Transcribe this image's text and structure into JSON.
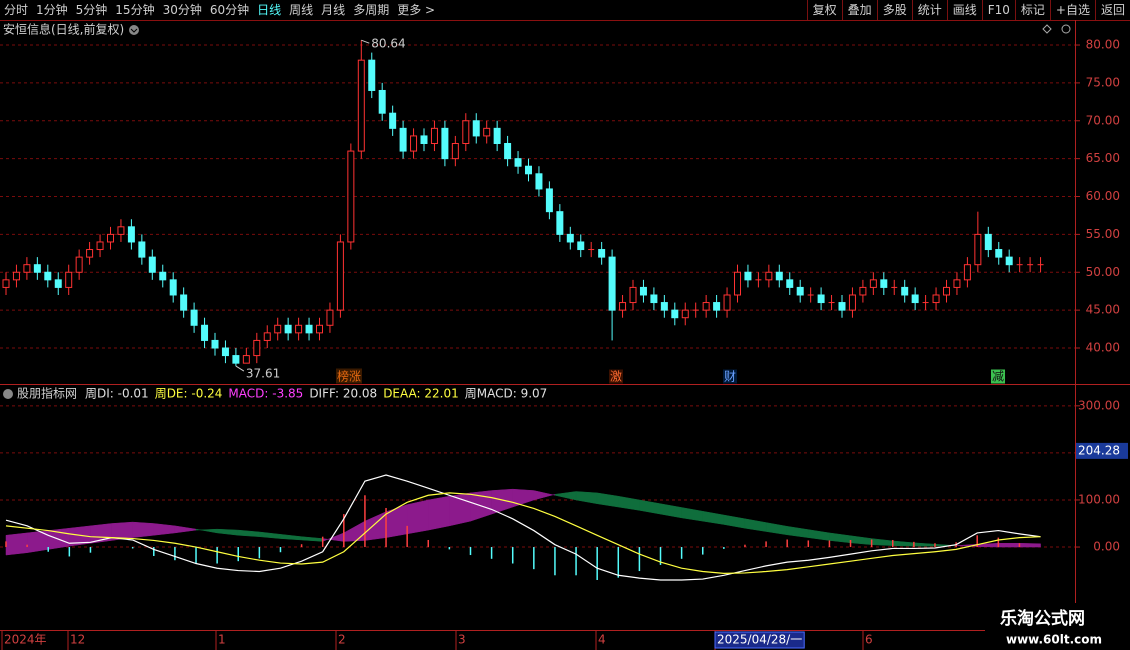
{
  "toolbar": {
    "left": [
      "分时",
      "1分钟",
      "5分钟",
      "15分钟",
      "30分钟",
      "60分钟",
      "日线",
      "周线",
      "月线",
      "多周期",
      "更多 >"
    ],
    "active_index": 6,
    "right": [
      "复权",
      "叠加",
      "多股",
      "统计",
      "画线",
      "F10",
      "标记",
      "+自选",
      "返回"
    ]
  },
  "chart_data": [
    {
      "type": "candlestick",
      "title": "安恒信息(日线,前复权)",
      "ylim": [
        35.38,
        83.04
      ],
      "yticks": [
        {
          "value": 80,
          "label": "80.00"
        },
        {
          "value": 75,
          "label": "75.00"
        },
        {
          "value": 70,
          "label": "70.00"
        },
        {
          "value": 65,
          "label": "65.00"
        },
        {
          "value": 60,
          "label": "60.00"
        },
        {
          "value": 55,
          "label": "55.00"
        },
        {
          "value": 50,
          "label": "50.00"
        },
        {
          "value": 45,
          "label": "45.00"
        },
        {
          "value": 40,
          "label": "40.00"
        }
      ],
      "grid": true,
      "up_color": "#ff3232",
      "down_color": "#54fcfc",
      "open": [
        48,
        49,
        50,
        51,
        50,
        49,
        48,
        50,
        52,
        53,
        54,
        55,
        56,
        54,
        52,
        50,
        49,
        47,
        45,
        43,
        41,
        40,
        39,
        38,
        39,
        41,
        42,
        43,
        42,
        43,
        42,
        43,
        45,
        54,
        66,
        78,
        74,
        71,
        69,
        66,
        68,
        67,
        69,
        65,
        67,
        70,
        68,
        69,
        67,
        65,
        64,
        63,
        61,
        58,
        55,
        54,
        53,
        53,
        52,
        45,
        46,
        48,
        47,
        46,
        45,
        44,
        45,
        45,
        46,
        45,
        47,
        50,
        49,
        49,
        50,
        49,
        48,
        47,
        47,
        46,
        46,
        45,
        47,
        48,
        49,
        48,
        48,
        47,
        46,
        46,
        47,
        48,
        49,
        51,
        55,
        53,
        52,
        51,
        51,
        51
      ],
      "close": [
        49,
        50,
        51,
        50,
        49,
        48,
        50,
        52,
        53,
        54,
        55,
        56,
        54,
        52,
        50,
        49,
        47,
        45,
        43,
        41,
        40,
        39,
        38,
        39,
        41,
        42,
        43,
        42,
        43,
        42,
        43,
        45,
        54,
        66,
        78,
        74,
        71,
        69,
        66,
        68,
        67,
        69,
        65,
        67,
        70,
        68,
        69,
        67,
        65,
        64,
        63,
        61,
        58,
        55,
        54,
        53,
        53,
        52,
        45,
        46,
        48,
        47,
        46,
        45,
        44,
        45,
        45,
        46,
        45,
        47,
        50,
        49,
        49,
        50,
        49,
        48,
        47,
        47,
        46,
        46,
        45,
        47,
        48,
        49,
        48,
        48,
        47,
        46,
        46,
        47,
        48,
        49,
        51,
        55,
        53,
        52,
        51,
        51,
        51,
        51
      ],
      "high": [
        50,
        51,
        52,
        52,
        51,
        50,
        51,
        53,
        54,
        55,
        56,
        57,
        57,
        55,
        53,
        51,
        50,
        48,
        46,
        44,
        42,
        41,
        40,
        40,
        42,
        43,
        44,
        44,
        44,
        44,
        44,
        46,
        55,
        67,
        80.64,
        79,
        75,
        72,
        70,
        69,
        69,
        70,
        70,
        68,
        71,
        71,
        70,
        70,
        68,
        66,
        65,
        64,
        62,
        59,
        56,
        55,
        54,
        54,
        53,
        47,
        49,
        49,
        48,
        47,
        46,
        46,
        46,
        47,
        47,
        48,
        51,
        51,
        50,
        51,
        51,
        50,
        49,
        48,
        48,
        47,
        47,
        48,
        49,
        50,
        50,
        49,
        49,
        48,
        47,
        48,
        49,
        50,
        52,
        58,
        56,
        54,
        53,
        52,
        52,
        52
      ],
      "low": [
        47,
        48,
        49,
        49,
        48,
        47,
        47,
        49,
        51,
        52,
        53,
        54,
        53,
        51,
        49,
        48,
        46,
        44,
        42,
        40,
        39,
        38,
        37.61,
        38,
        38,
        40,
        41,
        41,
        41,
        41,
        41,
        42,
        44,
        53,
        65,
        73,
        70,
        68,
        65,
        65,
        66,
        66,
        64,
        64,
        66,
        67,
        67,
        66,
        64,
        63,
        62,
        60,
        57,
        54,
        53,
        52,
        52,
        51,
        41,
        44,
        45,
        46,
        45,
        44,
        43,
        43,
        44,
        44,
        44,
        44,
        46,
        48,
        48,
        48,
        48,
        47,
        46,
        46,
        45,
        45,
        44,
        44,
        46,
        47,
        47,
        47,
        46,
        45,
        45,
        45,
        46,
        47,
        48,
        50,
        52,
        51,
        50,
        50,
        50,
        50
      ],
      "markers": [
        "榜涨",
        "激",
        "财",
        "减"
      ]
    },
    {
      "type": "macd",
      "title": "股朋指标网",
      "labels": [
        {
          "text": "周DI: -0.01",
          "color": "#e0e0e0"
        },
        {
          "text": "周DE: -0.24",
          "color": "#ffff40"
        },
        {
          "text": "MACD: -3.85",
          "color": "#ff40ff"
        },
        {
          "text": "DIFF: 20.08",
          "color": "#e0e0e0"
        },
        {
          "text": "DEAA: 22.01",
          "color": "#ffff40"
        },
        {
          "text": "周MACD: 9.07",
          "color": "#e0e0e0"
        }
      ],
      "ylim": [
        -172,
        340
      ],
      "yticks": [
        {
          "value": 300,
          "label": "300.00"
        },
        {
          "value": 200,
          "label": "200.00"
        },
        {
          "value": 100,
          "label": "100.00"
        },
        {
          "value": 0,
          "label": "0.00"
        }
      ],
      "current": {
        "value": 204.28,
        "label": "204.28"
      },
      "band_up_color": "#8c1a8c",
      "band_down_color": "#0f6e3c",
      "band_a": [
        25,
        30,
        35,
        40,
        45,
        50,
        53,
        50,
        45,
        38,
        30,
        25,
        22,
        18,
        15,
        12,
        30,
        55,
        75,
        90,
        100,
        108,
        115,
        120,
        123,
        120,
        110,
        100,
        92,
        85,
        78,
        70,
        62,
        55,
        48,
        40,
        33,
        26,
        20,
        14,
        9,
        5,
        3,
        2,
        2,
        3,
        6,
        8,
        8,
        7
      ],
      "band_b": [
        -17,
        -12,
        -5,
        2,
        8,
        14,
        20,
        25,
        30,
        36,
        38,
        36,
        32,
        27,
        22,
        18,
        12,
        14,
        20,
        28,
        36,
        45,
        55,
        70,
        85,
        100,
        112,
        118,
        115,
        108,
        100,
        92,
        84,
        76,
        68,
        60,
        52,
        44,
        37,
        30,
        24,
        18,
        13,
        9,
        6,
        3,
        1,
        0,
        0,
        0
      ],
      "diff": [
        57,
        45,
        25,
        8,
        10,
        20,
        15,
        -5,
        -20,
        -35,
        -45,
        -50,
        -52,
        -45,
        -30,
        -10,
        60,
        140,
        153,
        140,
        125,
        110,
        95,
        80,
        60,
        35,
        5,
        -15,
        -45,
        -60,
        -66,
        -70,
        -70,
        -68,
        -60,
        -50,
        -40,
        -32,
        -28,
        -22,
        -15,
        -8,
        -3,
        -3,
        -2,
        5,
        30,
        35,
        28,
        22
      ],
      "dea": [
        45,
        40,
        35,
        28,
        22,
        20,
        18,
        14,
        8,
        0,
        -10,
        -20,
        -28,
        -34,
        -36,
        -32,
        -10,
        30,
        70,
        95,
        110,
        115,
        112,
        105,
        95,
        82,
        65,
        45,
        25,
        5,
        -15,
        -32,
        -45,
        -52,
        -56,
        -55,
        -52,
        -48,
        -42,
        -36,
        -30,
        -24,
        -18,
        -14,
        -10,
        -5,
        5,
        15,
        20,
        22
      ],
      "macd": [
        12,
        5,
        -10,
        -20,
        -12,
        0,
        -3,
        -19,
        -28,
        -35,
        -35,
        -30,
        -24,
        -11,
        6,
        22,
        70,
        110,
        83,
        45,
        15,
        -5,
        -17,
        -25,
        -35,
        -47,
        -60,
        -60,
        -70,
        -65,
        -51,
        -38,
        -25,
        -16,
        -4,
        5,
        12,
        16,
        14,
        14,
        15,
        16,
        15,
        11,
        8,
        10,
        25,
        20,
        8,
        0
      ],
      "diff_color": "#ffffff",
      "dea_color": "#ffff40",
      "macd_up_color": "#ff4040",
      "macd_down_color": "#54fcfc"
    }
  ],
  "x_axis_labels": [
    "2024年",
    "12",
    "1",
    "2",
    "3",
    "4",
    "2025/04/28/一",
    "6"
  ],
  "watermark": {
    "title": "乐淘公式网",
    "url": "www.60lt.com"
  }
}
